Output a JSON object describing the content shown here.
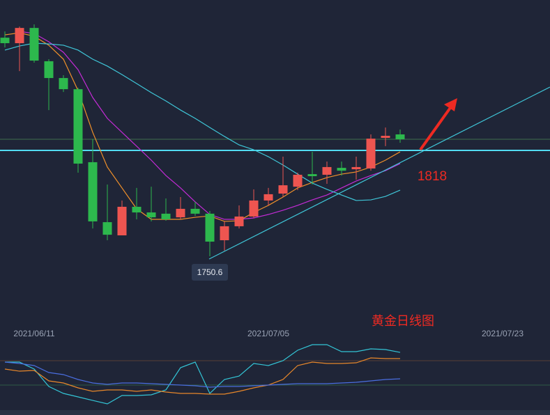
{
  "chart_data": {
    "type": "candlestick",
    "title": "黄金日线图",
    "categories": [
      null,
      null,
      "2021/06/11",
      null,
      null,
      null,
      null,
      null,
      null,
      null,
      null,
      null,
      null,
      null,
      null,
      null,
      null,
      null,
      "2021/07/05",
      null,
      null,
      null,
      null,
      null,
      null,
      null,
      null,
      null,
      null,
      null,
      null,
      null,
      null,
      null,
      "2021/07/23"
    ],
    "open": [
      1889.8,
      1886.3,
      1896.0,
      1874.8,
      1864.1,
      1857.0,
      1810.5,
      1772.3,
      1763.9,
      1782.1,
      1778.5,
      1777.7,
      1775.4,
      1780.8,
      1777.7,
      1760.8,
      1769.7,
      1775.9,
      1786.1,
      1790.5,
      1794.9,
      1802.9,
      1802.5,
      1806.9,
      1806.0,
      1806.5,
      1826.0,
      1828.2,
      null,
      null,
      null,
      null,
      null,
      null,
      null
    ],
    "high": [
      1893.8,
      1896.9,
      1898.3,
      1876.1,
      1865.9,
      1857.9,
      1825.1,
      1796.3,
      1786.1,
      1794.1,
      1794.9,
      1787.4,
      1788.3,
      1785.2,
      1779.4,
      1772.8,
      1783.0,
      1793.2,
      1794.1,
      1814.0,
      1803.8,
      1817.1,
      1810.9,
      1810.9,
      1814.0,
      1828.2,
      1832.6,
      1831.3,
      null,
      null,
      null,
      null,
      null,
      null,
      null
    ],
    "low": [
      1883.6,
      1868.5,
      1873.9,
      1843.7,
      1855.2,
      1803.8,
      1768.3,
      1760.8,
      1763.9,
      1774.1,
      1772.8,
      1773.2,
      1774.1,
      1776.3,
      1750.6,
      1754.2,
      1768.3,
      1775.0,
      1783.0,
      1788.3,
      1792.7,
      1796.3,
      1796.7,
      1802.0,
      1799.4,
      1805.1,
      1820.7,
      1822.9,
      null,
      null,
      null,
      null,
      null,
      null,
      null
    ],
    "close": [
      1886.3,
      1896.0,
      1875.2,
      1864.1,
      1857.0,
      1809.6,
      1772.8,
      1764.3,
      1782.1,
      1778.5,
      1775.4,
      1774.1,
      1780.8,
      1777.7,
      1759.9,
      1769.7,
      1775.9,
      1786.1,
      1790.1,
      1795.8,
      1802.5,
      1801.6,
      1807.4,
      1805.1,
      1807.4,
      1825.5,
      1827.3,
      1825.1,
      null,
      null,
      null,
      null,
      null,
      null,
      null
    ],
    "up_color": "#ee5550",
    "down_color": "#2db84d",
    "ylim": [
      1709.8,
      1913.8
    ],
    "lines": [
      {
        "color": "#f0902a",
        "values": [
          1891.6,
          1892.9,
          1890.7,
          1885.0,
          1876.1,
          1856.1,
          1829.5,
          1807.4,
          1794.1,
          1780.8,
          1774.1,
          1774.1,
          1774.1,
          1775.4,
          1776.3,
          1772.8,
          1773.2,
          1778.5,
          1783.0,
          1788.3,
          1794.1,
          1797.6,
          1800.7,
          1802.9,
          1804.3,
          1807.4,
          1811.8,
          1817.1,
          null,
          null,
          null,
          null,
          null,
          null,
          null
        ]
      },
      {
        "color": "#c42bd6",
        "values": [
          null,
          1893.8,
          1892.5,
          1887.2,
          1880.5,
          1869.4,
          1851.7,
          1838.4,
          1829.5,
          1820.7,
          1811.8,
          1802.0,
          1794.1,
          1785.2,
          1777.2,
          1774.1,
          1774.1,
          1775.0,
          1777.2,
          1779.9,
          1783.0,
          1786.5,
          1789.6,
          1794.1,
          1798.5,
          1802.0,
          1805.1,
          1809.6,
          null,
          null,
          null,
          null,
          null,
          null,
          null
        ]
      },
      {
        "color": "#3fc6d8",
        "values": [
          1881.9,
          1884.5,
          1886.3,
          1885.8,
          1885.0,
          1881.9,
          1876.1,
          1871.7,
          1866.3,
          1860.6,
          1854.8,
          1849.5,
          1843.7,
          1838.4,
          1832.6,
          1826.9,
          1821.5,
          1818.4,
          1814.0,
          1808.7,
          1802.9,
          1797.2,
          1793.2,
          1789.6,
          1786.1,
          1786.5,
          1788.7,
          1792.7,
          null,
          null,
          null,
          null,
          null,
          null,
          null
        ]
      }
    ],
    "hlines": [
      {
        "value": 1818,
        "color": "#52dcf2"
      },
      {
        "value": 1825.1,
        "color": "#3f6e4c"
      }
    ],
    "indicator": {
      "ylim": [
        -30,
        125
      ],
      "levels": [
        20,
        80
      ],
      "lines": [
        {
          "color": "#33c5d6",
          "values": [
            76.6,
            76.6,
            59.5,
            16.6,
            -0.5,
            -9.1,
            -17.7,
            -26.2,
            -5.7,
            -5.7,
            -3.9,
            8.1,
            62.9,
            76.6,
            -0.5,
            33.8,
            42.3,
            73.2,
            68.1,
            80.1,
            105.8,
            119.5,
            119.5,
            102.4,
            102.4,
            109.2,
            107.5,
            100.6,
            null,
            null,
            null,
            null,
            null,
            null,
            null
          ]
        },
        {
          "color": "#e8872a",
          "values": [
            59.5,
            54.3,
            56.1,
            30.3,
            25.2,
            13.2,
            4.6,
            8.1,
            8.1,
            4.6,
            8.1,
            2.9,
            -0.5,
            -0.5,
            -2.2,
            -2.2,
            4.6,
            13.2,
            20.1,
            33.8,
            68.1,
            76.6,
            73.2,
            73.2,
            74.9,
            86.9,
            85.2,
            85.2,
            null,
            null,
            null,
            null,
            null,
            null,
            null
          ]
        },
        {
          "color": "#4a6ee0",
          "values": [
            76.6,
            73.2,
            68.1,
            50.9,
            45.8,
            33.8,
            25.2,
            21.8,
            25.2,
            25.2,
            23.5,
            21.8,
            20.1,
            18.3,
            14.9,
            16.6,
            16.6,
            18.3,
            20.1,
            21.8,
            23.5,
            23.5,
            23.5,
            25.2,
            26.9,
            30.3,
            33.8,
            35.5,
            null,
            null,
            null,
            null,
            null,
            null,
            null
          ]
        }
      ]
    }
  }
}
